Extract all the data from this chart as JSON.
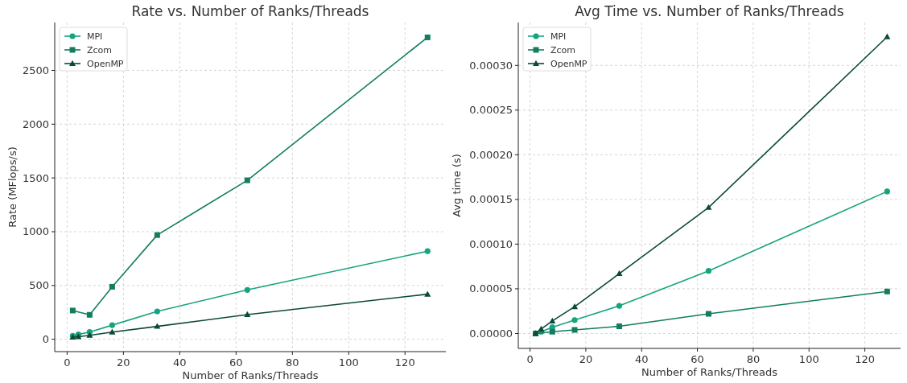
{
  "chart_data": [
    {
      "type": "line",
      "title": "Rate vs. Number of Ranks/Threads",
      "xlabel": "Number of Ranks/Threads",
      "ylabel": "Rate (MFlops/s)",
      "x": [
        2,
        4,
        8,
        16,
        32,
        64,
        128
      ],
      "series": [
        {
          "name": "MPI",
          "color": "#17a37f",
          "marker": "circle",
          "values": [
            32,
            45,
            67,
            131,
            259,
            459,
            819
          ]
        },
        {
          "name": "Zcom",
          "color": "#137d5f",
          "marker": "square",
          "x": [
            2,
            8,
            16,
            32,
            64,
            128
          ],
          "values": [
            267,
            227,
            488,
            969,
            1478,
            2807
          ]
        },
        {
          "name": "OpenMP",
          "color": "#0b4a36",
          "marker": "triangle",
          "values": [
            19,
            24,
            37,
            67,
            120,
            229,
            419
          ]
        }
      ],
      "xlim": [
        -4.4,
        134.5
      ],
      "xticks": [
        0,
        20,
        40,
        60,
        80,
        100,
        120
      ],
      "ylim": [
        -115,
        2945
      ],
      "yticks": [
        0,
        500,
        1000,
        1500,
        2000,
        2500
      ],
      "grid": true,
      "legend": "top left"
    },
    {
      "type": "line",
      "title": "Avg Time vs. Number of Ranks/Threads",
      "xlabel": "Number of Ranks/Threads",
      "ylabel": "Avg time (s)",
      "x": [
        2,
        4,
        8,
        16,
        32,
        64,
        128
      ],
      "series": [
        {
          "name": "MPI",
          "color": "#17a37f",
          "marker": "circle",
          "values": [
            0,
            2e-06,
            7e-06,
            1.5e-05,
            3.1e-05,
            7e-05,
            0.000159
          ]
        },
        {
          "name": "Zcom",
          "color": "#137d5f",
          "marker": "square",
          "x": [
            2,
            8,
            16,
            32,
            64,
            128
          ],
          "values": [
            0,
            2e-06,
            4e-06,
            8e-06,
            2.2e-05,
            4.7e-05
          ]
        },
        {
          "name": "OpenMP",
          "color": "#0b4a36",
          "marker": "triangle",
          "values": [
            0,
            5e-06,
            1.4e-05,
            3e-05,
            6.7e-05,
            0.000141,
            0.000332
          ]
        }
      ],
      "xlim": [
        -4.2,
        132.8
      ],
      "xticks": [
        0,
        20,
        40,
        60,
        80,
        100,
        120
      ],
      "ylim": [
        -1.67e-05,
        0.000348
      ],
      "yticks": [
        {
          "value": 0,
          "label": "0.00000"
        },
        {
          "value": 5e-05,
          "label": "0.00005"
        },
        {
          "value": 0.0001,
          "label": "0.00010"
        },
        {
          "value": 0.00015,
          "label": "0.00015"
        },
        {
          "value": 0.0002,
          "label": "0.00020"
        },
        {
          "value": 0.00025,
          "label": "0.00025"
        },
        {
          "value": 0.0003,
          "label": "0.00030"
        }
      ],
      "grid": true,
      "legend": "top left"
    }
  ]
}
